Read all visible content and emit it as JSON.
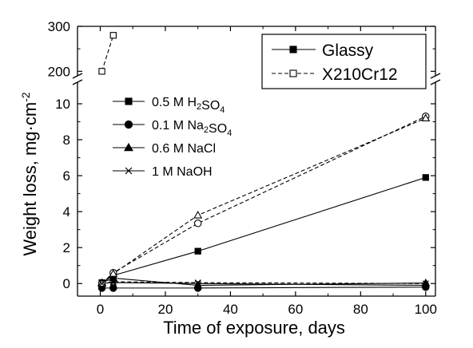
{
  "chart_data": {
    "type": "line",
    "xlabel": "Time of exposure, days",
    "ylabel": "Weight loss, mg·cm",
    "ylabel_sup": "-2",
    "xlim": [
      -7,
      103
    ],
    "ylim_lower": [
      -0.7,
      11.2
    ],
    "ylim_upper": [
      190,
      300
    ],
    "axis_break": true,
    "grid": false,
    "x_ticks": [
      0,
      20,
      40,
      60,
      80,
      100
    ],
    "y_ticks_lower": [
      0,
      2,
      4,
      6,
      8,
      10
    ],
    "y_ticks_upper": [
      200,
      300
    ],
    "legend_material": {
      "position": "top-right",
      "entries": [
        {
          "label": "Glassy",
          "style": "solid",
          "marker": "square-filled"
        },
        {
          "label": "X210Cr12",
          "style": "dashed",
          "marker": "square-open"
        }
      ]
    },
    "legend_solution": {
      "position": "left",
      "entries": [
        {
          "base": "0.5 M H",
          "sub": "2",
          "rest": "SO",
          "sub2": "4",
          "marker": "square-filled"
        },
        {
          "base": "0.1 M Na",
          "sub": "2",
          "rest": "SO",
          "sub2": "4",
          "marker": "circle-filled"
        },
        {
          "base": "0.6 M NaCl",
          "sub": "",
          "rest": "",
          "sub2": "",
          "marker": "triangle-filled"
        },
        {
          "base": "1 M NaOH",
          "sub": "",
          "rest": "",
          "sub2": "",
          "marker": "cross"
        }
      ]
    },
    "series": [
      {
        "material": "Glassy",
        "solution": "0.5 M H2SO4",
        "marker": "square",
        "filled": true,
        "dashed": false,
        "points": [
          [
            0.5,
            0.05
          ],
          [
            4,
            0.45
          ],
          [
            30,
            1.8
          ],
          [
            100,
            5.9
          ]
        ]
      },
      {
        "material": "Glassy",
        "solution": "0.1 M Na2SO4",
        "marker": "circle",
        "filled": true,
        "dashed": false,
        "points": [
          [
            0.5,
            -0.25
          ],
          [
            4,
            -0.25
          ],
          [
            30,
            -0.25
          ],
          [
            100,
            -0.2
          ]
        ]
      },
      {
        "material": "Glassy",
        "solution": "0.6 M NaCl",
        "marker": "triangle",
        "filled": true,
        "dashed": false,
        "points": [
          [
            0.5,
            0.05
          ],
          [
            4,
            0.3
          ],
          [
            30,
            -0.1
          ],
          [
            100,
            0.03
          ]
        ]
      },
      {
        "material": "Glassy",
        "solution": "1 M NaOH",
        "marker": "cross",
        "filled": true,
        "dashed": false,
        "points": [
          [
            0.5,
            0.02
          ],
          [
            4,
            0.05
          ],
          [
            30,
            0.0
          ],
          [
            100,
            -0.1
          ]
        ]
      },
      {
        "material": "X210Cr12",
        "solution": "0.5 M H2SO4",
        "marker": "square",
        "filled": false,
        "dashed": true,
        "points": [
          [
            0.5,
            200
          ],
          [
            4,
            280
          ]
        ]
      },
      {
        "material": "X210Cr12",
        "solution": "0.1 M Na2SO4",
        "marker": "circle",
        "filled": false,
        "dashed": true,
        "points": [
          [
            0.5,
            0.0
          ],
          [
            4,
            0.6
          ],
          [
            30,
            3.35
          ],
          [
            100,
            9.3
          ]
        ]
      },
      {
        "material": "X210Cr12",
        "solution": "0.6 M NaCl",
        "marker": "triangle",
        "filled": false,
        "dashed": true,
        "points": [
          [
            0.5,
            0.0
          ],
          [
            4,
            0.55
          ],
          [
            30,
            3.8
          ],
          [
            100,
            9.2
          ]
        ]
      },
      {
        "material": "X210Cr12",
        "solution": "1 M NaOH",
        "marker": "cross",
        "filled": false,
        "dashed": true,
        "points": [
          [
            0.5,
            0.0
          ],
          [
            4,
            0.1
          ],
          [
            30,
            0.05
          ],
          [
            100,
            0.0
          ]
        ]
      }
    ]
  },
  "colors": {
    "ink": "#000000",
    "background": "#ffffff"
  }
}
